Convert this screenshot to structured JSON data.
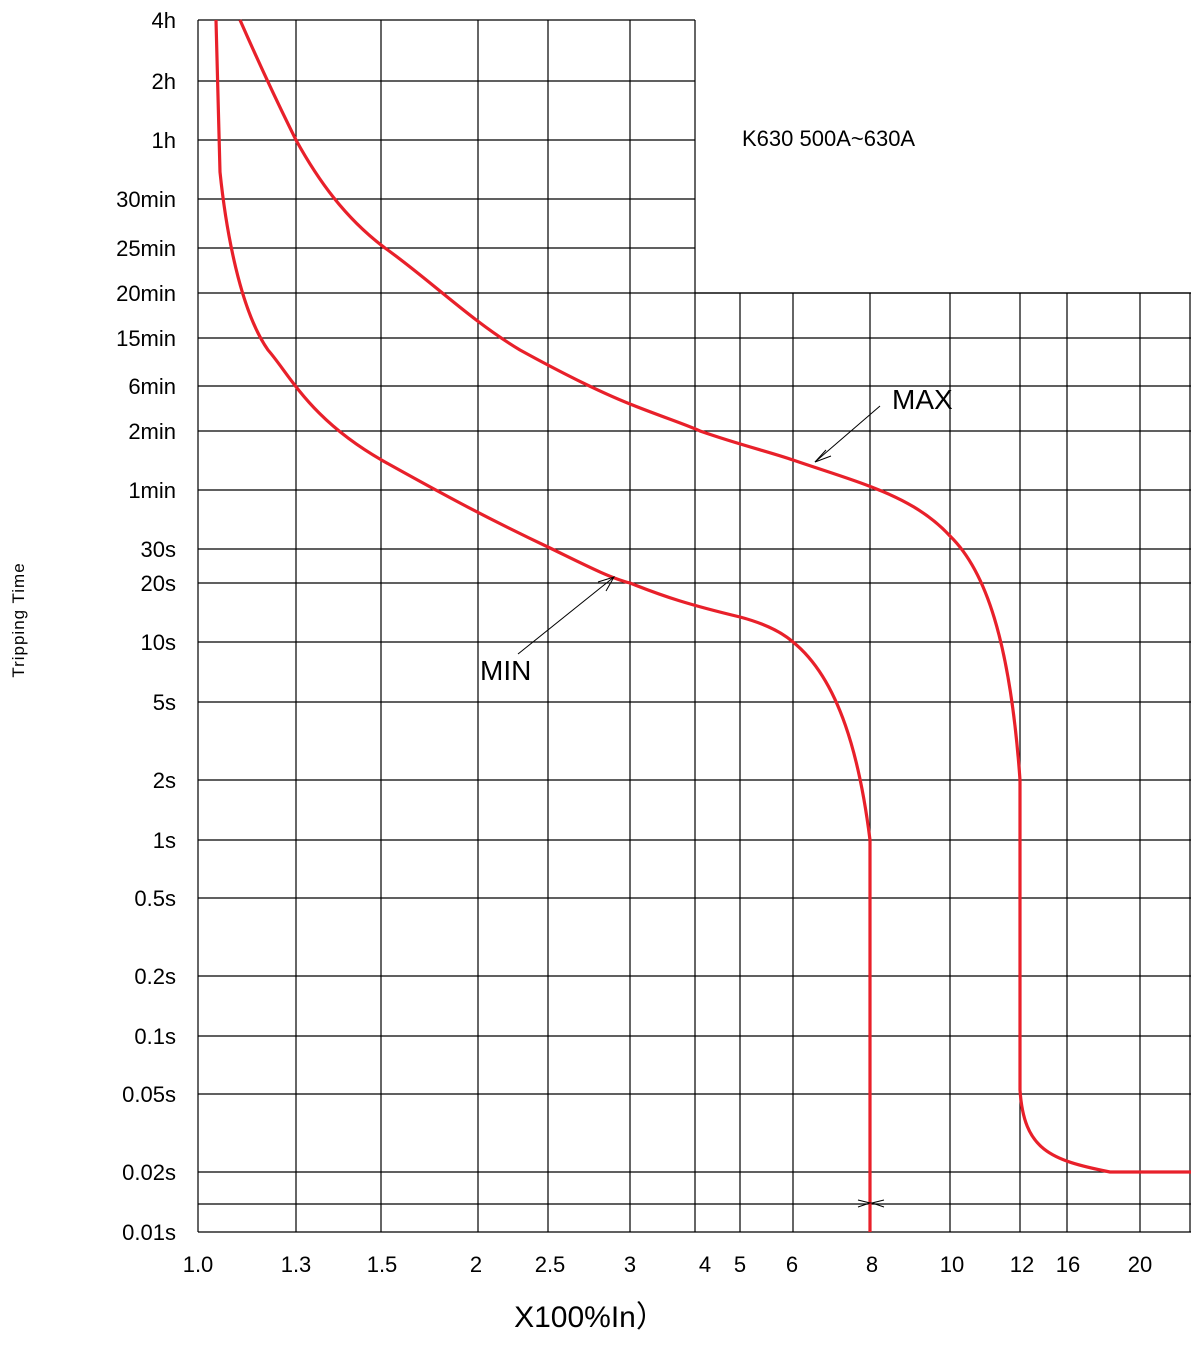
{
  "chart_data": {
    "type": "line",
    "annotation": "K630 500A~630A",
    "xlabel": "X100%In）",
    "ylabel": "Tripping Time",
    "x_ticks": [
      "1.0",
      "1.3",
      "1.5",
      "2",
      "2.5",
      "3",
      "4",
      "5",
      "6",
      "8",
      "10",
      "12",
      "16",
      "20"
    ],
    "y_ticks": [
      "4h",
      "2h",
      "1h",
      "30min",
      "25min",
      "20min",
      "15min",
      "6min",
      "2min",
      "1min",
      "30s",
      "20s",
      "10s",
      "5s",
      "2s",
      "1s",
      "0.5s",
      "0.2s",
      "0.1s",
      "0.05s",
      "0.02s",
      "0.01s"
    ],
    "grid": true,
    "series": [
      {
        "name": "MAX",
        "color": "#e8202a",
        "points": [
          {
            "x": "1.0",
            "y": "4h"
          },
          {
            "x": "1.3",
            "y": "1h"
          },
          {
            "x": "1.5",
            "y": "25min"
          },
          {
            "x": "2",
            "y": "15min"
          },
          {
            "x": "3",
            "y": "2min"
          },
          {
            "x": "4",
            "y": "2min"
          },
          {
            "x": "6",
            "y": "1min"
          },
          {
            "x": "8",
            "y": "1min"
          },
          {
            "x": "10",
            "y": "30s"
          },
          {
            "x": "12",
            "y": "2s"
          },
          {
            "x": "12",
            "y": "0.05s"
          },
          {
            "x": "16",
            "y": "0.02s"
          },
          {
            "x": "20",
            "y": "0.02s"
          }
        ]
      },
      {
        "name": "MIN",
        "color": "#e8202a",
        "points": [
          {
            "x": "1.0",
            "y": "4h"
          },
          {
            "x": "1.0",
            "y": "30min"
          },
          {
            "x": "1.3",
            "y": "6min"
          },
          {
            "x": "1.5",
            "y": "2min"
          },
          {
            "x": "2",
            "y": "1min"
          },
          {
            "x": "2.5",
            "y": "30s"
          },
          {
            "x": "3",
            "y": "20s"
          },
          {
            "x": "5",
            "y": "10s"
          },
          {
            "x": "6",
            "y": "10s"
          },
          {
            "x": "8",
            "y": "1s"
          },
          {
            "x": "8",
            "y": "0.01s"
          }
        ]
      }
    ]
  }
}
